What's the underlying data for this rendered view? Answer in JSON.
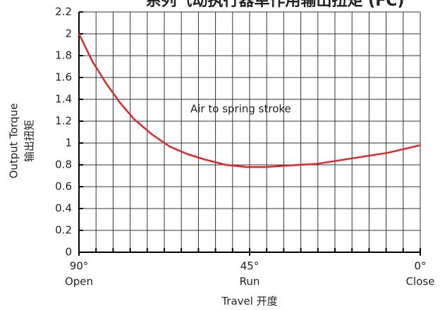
{
  "chart_data": {
    "type": "line",
    "title": "系列气动执行器单作用输出扭矩 (FC)",
    "annotation": "Air to spring stroke",
    "ylabel": "Output Torque",
    "ylabel_cn": "输出扭矩",
    "xlabel": "Travel 开度",
    "x": [
      90,
      86.5,
      82.9,
      79.2,
      75.5,
      70.8,
      66.2,
      61.5,
      56.9,
      51.3,
      45.7,
      41.0,
      36.4,
      27.1,
      17.9,
      8.6,
      0
    ],
    "series": [
      {
        "name": "Air to spring stroke",
        "color": "#e0262b",
        "values": [
          2.0,
          1.75,
          1.55,
          1.37,
          1.22,
          1.08,
          0.97,
          0.9,
          0.85,
          0.8,
          0.78,
          0.78,
          0.79,
          0.81,
          0.86,
          0.91,
          0.98
        ]
      }
    ],
    "xlim": [
      90,
      0
    ],
    "xticks": [
      {
        "value": 90,
        "label": "90°"
      },
      {
        "value": 45,
        "label": "45°"
      },
      {
        "value": 0,
        "label": "0°"
      }
    ],
    "xtick_sublabels": [
      "Open",
      "Run",
      "Close"
    ],
    "xgrid_step": 4.5,
    "ylim": [
      0,
      2.2
    ],
    "yticks": [
      0,
      0.2,
      0.4,
      0.6,
      0.8,
      1,
      1.2,
      1.4,
      1.6,
      1.8,
      2,
      2.2
    ],
    "grid": true
  }
}
